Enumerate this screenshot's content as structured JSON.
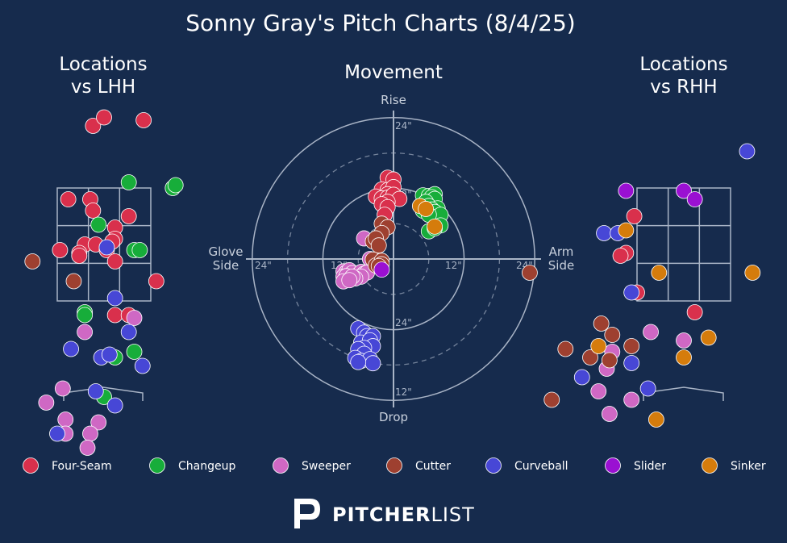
{
  "title": "Sonny Gray's Pitch Charts (8/4/25)",
  "colors": {
    "background": "#162b4d",
    "line": "#a9b4c6",
    "Four-Seam": "#d9304c",
    "Changeup": "#17ad3a",
    "Sweeper": "#cf68c4",
    "Cutter": "#9e4030",
    "Curveball": "#4747d6",
    "Slider": "#9a10d2",
    "Sinker": "#d57c0c"
  },
  "legend": [
    "Four-Seam",
    "Changeup",
    "Sweeper",
    "Cutter",
    "Curveball",
    "Slider",
    "Sinker"
  ],
  "brand": {
    "bold": "PITCHER",
    "light": "LIST"
  },
  "chart_data": [
    {
      "type": "scatter",
      "title": "Locations vs LHH",
      "series": [
        {
          "name": "Four-Seam",
          "points": [
            [
              -0.2,
              4.6
            ],
            [
              0.0,
              4.75
            ],
            [
              0.72,
              4.7
            ],
            [
              -0.65,
              3.3
            ],
            [
              -0.25,
              3.3
            ],
            [
              -0.2,
              3.1
            ],
            [
              0.45,
              3.0
            ],
            [
              0.2,
              2.8
            ],
            [
              0.2,
              2.6
            ],
            [
              -0.8,
              2.4
            ],
            [
              -0.35,
              2.5
            ],
            [
              -0.15,
              2.5
            ],
            [
              0.05,
              2.4
            ],
            [
              0.15,
              2.55
            ],
            [
              -0.45,
              2.35
            ],
            [
              0.2,
              2.2
            ],
            [
              0.95,
              1.85
            ],
            [
              0.2,
              1.25
            ],
            [
              0.45,
              1.25
            ],
            [
              -0.45,
              2.3
            ]
          ]
        },
        {
          "name": "Changeup",
          "points": [
            [
              0.45,
              3.6
            ],
            [
              1.25,
              3.5
            ],
            [
              1.3,
              3.55
            ],
            [
              -0.1,
              2.85
            ],
            [
              0.55,
              2.4
            ],
            [
              0.65,
              2.4
            ],
            [
              -0.35,
              1.3
            ],
            [
              -0.35,
              1.25
            ],
            [
              0.55,
              0.6
            ],
            [
              0.2,
              0.5
            ],
            [
              0.0,
              -0.2
            ]
          ]
        },
        {
          "name": "Sweeper",
          "points": [
            [
              -0.35,
              0.95
            ],
            [
              0.55,
              1.2
            ],
            [
              -0.75,
              -0.05
            ],
            [
              -1.05,
              -0.3
            ],
            [
              -0.7,
              -0.6
            ],
            [
              -0.1,
              -0.65
            ],
            [
              -0.7,
              -0.85
            ],
            [
              -0.25,
              -0.85
            ],
            [
              -0.3,
              -1.1
            ]
          ]
        },
        {
          "name": "Cutter",
          "points": [
            [
              -1.3,
              2.2
            ],
            [
              -0.55,
              1.85
            ]
          ]
        },
        {
          "name": "Curveball",
          "points": [
            [
              0.05,
              2.45
            ],
            [
              0.2,
              1.55
            ],
            [
              0.45,
              0.95
            ],
            [
              -0.6,
              0.65
            ],
            [
              -0.05,
              0.5
            ],
            [
              0.1,
              0.55
            ],
            [
              0.7,
              0.35
            ],
            [
              -0.15,
              -0.1
            ],
            [
              0.2,
              -0.35
            ],
            [
              -0.85,
              -0.85
            ]
          ]
        },
        {
          "name": "Slider",
          "points": []
        },
        {
          "name": "Sinker",
          "points": []
        }
      ]
    },
    {
      "type": "scatter",
      "title": "Movement",
      "xlabel": "Glove Side / Arm Side",
      "ylabel": "Drop / Rise",
      "axis_labels": {
        "top": "Rise",
        "bottom": "Drop",
        "left": [
          "Glove",
          "Side"
        ],
        "right": [
          "Arm",
          "Side"
        ]
      },
      "ring_labels": [
        "24\"",
        "12\"",
        "12\"",
        "24\"",
        "12\"",
        "24\"",
        "24\""
      ],
      "series": [
        {
          "name": "Four-Seam",
          "points": [
            [
              -1,
              13.8
            ],
            [
              0,
              13.5
            ],
            [
              -2,
              11.8
            ],
            [
              -1,
              11.7
            ],
            [
              0,
              12.2
            ],
            [
              -1,
              11.0
            ],
            [
              -3,
              10.6
            ],
            [
              -2,
              10.3
            ],
            [
              -1,
              10.4
            ],
            [
              0,
              10.9
            ],
            [
              1,
              10.2
            ],
            [
              -1,
              9.7
            ],
            [
              -2,
              9.3
            ],
            [
              -1,
              8.8
            ],
            [
              -1.5,
              7.5
            ]
          ]
        },
        {
          "name": "Changeup",
          "points": [
            [
              5,
              10.8
            ],
            [
              6,
              10.7
            ],
            [
              7,
              11.0
            ],
            [
              6.5,
              10.5
            ],
            [
              7,
              10.2
            ],
            [
              5.5,
              9.7
            ],
            [
              6,
              9.0
            ],
            [
              7.5,
              8.6
            ],
            [
              5,
              8.2
            ],
            [
              6.5,
              8.4
            ],
            [
              7,
              8.0
            ],
            [
              8,
              7.5
            ],
            [
              6,
              7.5
            ],
            [
              8,
              5.7
            ],
            [
              6,
              4.7
            ],
            [
              7,
              5.2
            ]
          ]
        },
        {
          "name": "Sweeper",
          "points": [
            [
              -5,
              3.5
            ],
            [
              -4,
              0
            ],
            [
              -8.5,
              -2.1
            ],
            [
              -8,
              -2.3
            ],
            [
              -7.5,
              -1.9
            ],
            [
              -7,
              -2.4
            ],
            [
              -8.5,
              -3.0
            ],
            [
              -8,
              -2.9
            ],
            [
              -6.5,
              -3.1
            ],
            [
              -6,
              -2.7
            ],
            [
              -5.5,
              -2.2
            ],
            [
              -5,
              -2.5
            ],
            [
              -4.5,
              -2.3
            ],
            [
              -5.5,
              -3.0
            ],
            [
              -6.5,
              -3.3
            ],
            [
              -7,
              -3.0
            ],
            [
              -8.5,
              -3.8
            ],
            [
              -7.5,
              -3.6
            ]
          ]
        },
        {
          "name": "Cutter",
          "points": [
            [
              -2,
              6.0
            ],
            [
              -1,
              5.4
            ],
            [
              -2,
              4.4
            ],
            [
              -3.5,
              3.0
            ],
            [
              -3.0,
              3.5
            ],
            [
              -2.5,
              2.3
            ],
            [
              -3.5,
              -0.1
            ],
            [
              -3,
              -1.1
            ],
            [
              -2,
              -0.3
            ],
            [
              -2,
              -0.9
            ],
            [
              -2.5,
              -1.2
            ]
          ]
        },
        {
          "name": "Curveball",
          "points": [
            [
              -6,
              -11.8
            ],
            [
              -5,
              -12.5
            ],
            [
              -4.5,
              -13.1
            ],
            [
              -3.5,
              -13.1
            ],
            [
              -5.5,
              -14.2
            ],
            [
              -4,
              -13.8
            ],
            [
              -3.5,
              -14.8
            ],
            [
              -5,
              -15.1
            ],
            [
              -6,
              -15.3
            ],
            [
              -5,
              -16.1
            ],
            [
              -6.5,
              -16.8
            ],
            [
              -5.5,
              -17.3
            ],
            [
              -4,
              -17.0
            ],
            [
              -3.5,
              -17.7
            ],
            [
              -6,
              -17.5
            ]
          ]
        },
        {
          "name": "Slider",
          "points": [
            [
              -2,
              -1.8
            ]
          ]
        },
        {
          "name": "Sinker",
          "points": [
            [
              4.5,
              9.0
            ],
            [
              5.5,
              8.5
            ],
            [
              7,
              5.5
            ]
          ]
        }
      ]
    },
    {
      "type": "scatter",
      "title": "Locations vs RHH",
      "series": [
        {
          "name": "Four-Seam",
          "points": [
            [
              -0.9,
              3.0
            ],
            [
              -1.05,
              2.35
            ],
            [
              -1.15,
              2.3
            ],
            [
              -0.85,
              1.65
            ],
            [
              0.2,
              1.3
            ]
          ]
        },
        {
          "name": "Changeup",
          "points": []
        },
        {
          "name": "Sweeper",
          "points": [
            [
              -0.6,
              0.95
            ],
            [
              0.0,
              0.8
            ],
            [
              -1.3,
              0.6
            ],
            [
              -1.4,
              0.3
            ],
            [
              -1.55,
              -0.1
            ],
            [
              -0.95,
              -0.25
            ],
            [
              -1.35,
              -0.5
            ]
          ]
        },
        {
          "name": "Cutter",
          "points": [
            [
              -2.8,
              2.0
            ],
            [
              -1.5,
              1.1
            ],
            [
              -1.3,
              0.9
            ],
            [
              -2.15,
              0.65
            ],
            [
              -0.95,
              0.7
            ],
            [
              -1.7,
              0.5
            ],
            [
              -1.35,
              0.45
            ],
            [
              -2.4,
              -0.25
            ]
          ]
        },
        {
          "name": "Curveball",
          "points": [
            [
              1.15,
              4.15
            ],
            [
              -1.45,
              2.7
            ],
            [
              -1.2,
              2.7
            ],
            [
              -0.95,
              1.65
            ],
            [
              -0.95,
              0.4
            ],
            [
              -1.85,
              0.15
            ],
            [
              -0.65,
              -0.05
            ]
          ]
        },
        {
          "name": "Slider",
          "points": [
            [
              -1.05,
              3.45
            ],
            [
              0.0,
              3.45
            ],
            [
              0.2,
              3.3
            ]
          ]
        },
        {
          "name": "Sinker",
          "points": [
            [
              -1.05,
              2.75
            ],
            [
              -0.45,
              2.0
            ],
            [
              1.25,
              2.0
            ],
            [
              0.45,
              0.85
            ],
            [
              0.0,
              0.5
            ],
            [
              -1.55,
              0.7
            ],
            [
              -0.5,
              -0.6
            ]
          ]
        }
      ]
    }
  ]
}
